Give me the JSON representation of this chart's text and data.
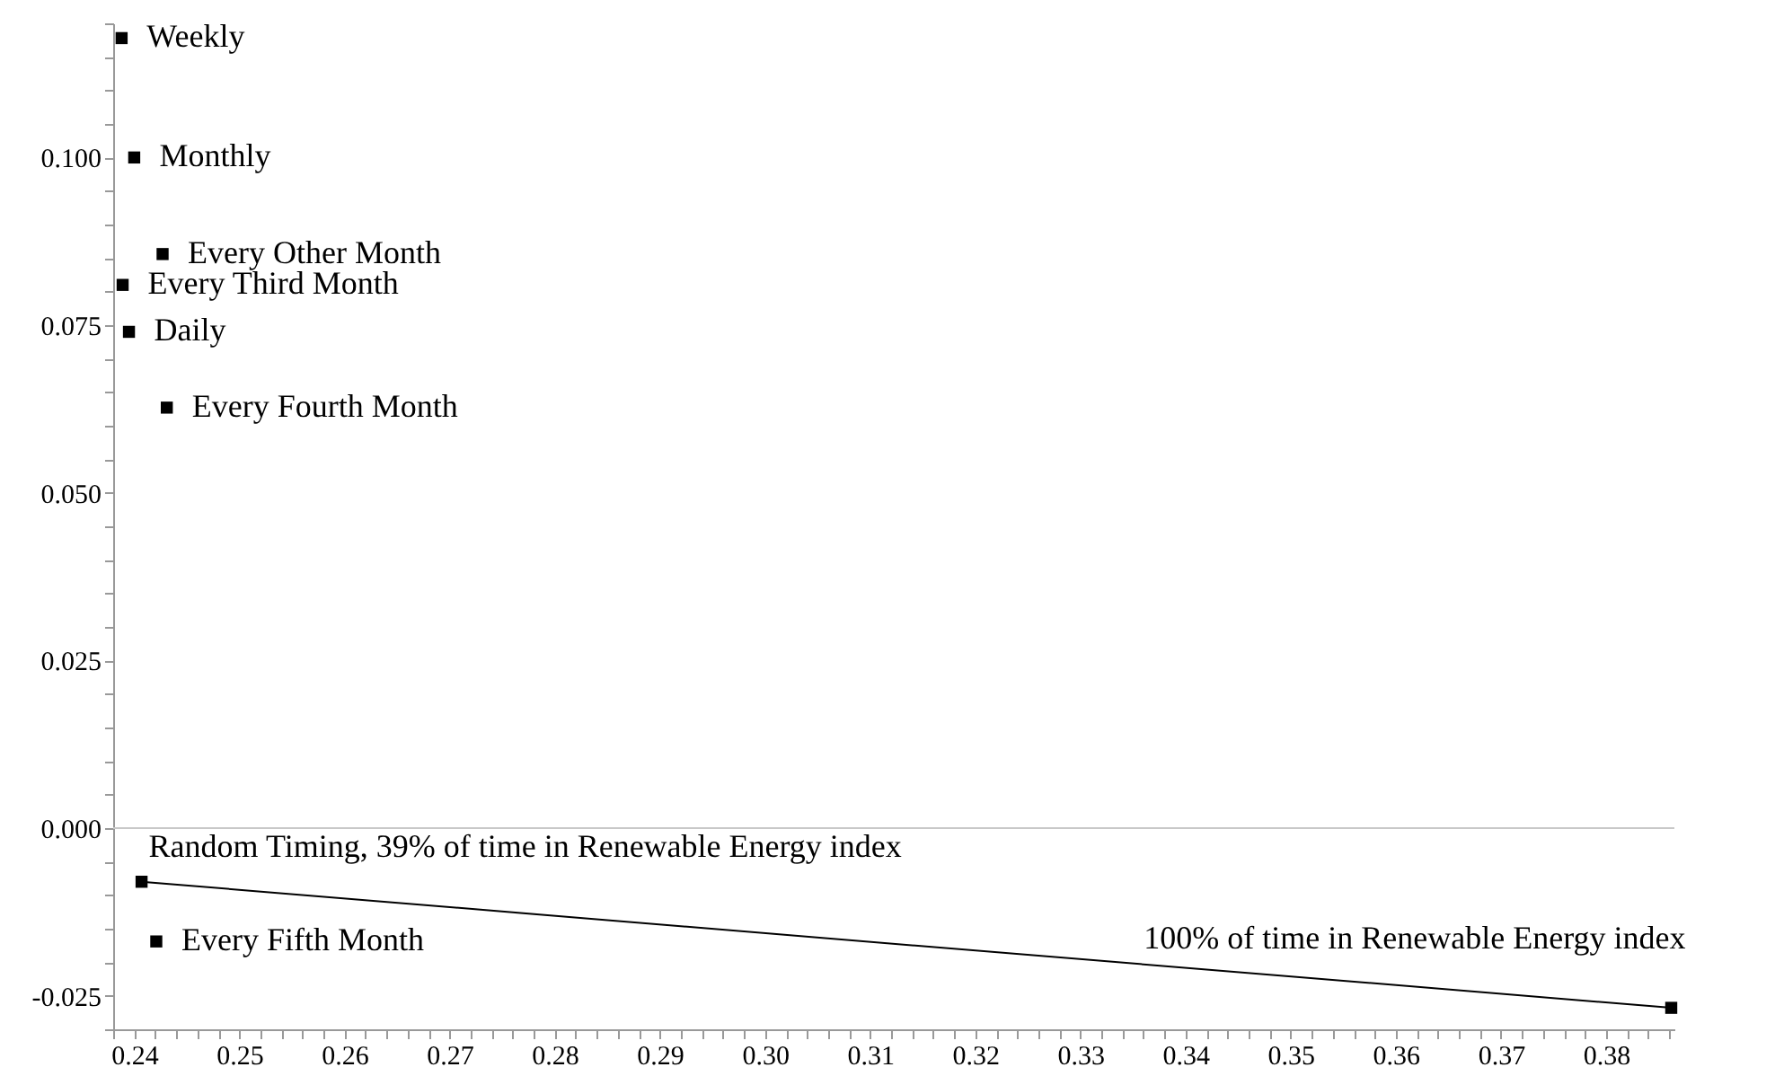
{
  "chart_data": {
    "type": "scatter",
    "marker": "square",
    "grid": false,
    "xlim": [
      0.238,
      0.3865
    ],
    "ylim": [
      -0.03,
      0.12
    ],
    "xticks": [
      {
        "value": 0.238,
        "label": null
      },
      0.24,
      {
        "value": 0.242,
        "label": null
      },
      {
        "value": 0.244,
        "label": null
      },
      {
        "value": 0.246,
        "label": null
      },
      {
        "value": 0.248,
        "label": null
      },
      0.25,
      {
        "value": 0.252,
        "label": null
      },
      {
        "value": 0.254,
        "label": null
      },
      {
        "value": 0.256,
        "label": null
      },
      {
        "value": 0.258,
        "label": null
      },
      0.26,
      {
        "value": 0.262,
        "label": null
      },
      {
        "value": 0.264,
        "label": null
      },
      {
        "value": 0.266,
        "label": null
      },
      {
        "value": 0.268,
        "label": null
      },
      0.27,
      {
        "value": 0.272,
        "label": null
      },
      {
        "value": 0.274,
        "label": null
      },
      {
        "value": 0.276,
        "label": null
      },
      {
        "value": 0.278,
        "label": null
      },
      0.28,
      {
        "value": 0.282,
        "label": null
      },
      {
        "value": 0.284,
        "label": null
      },
      {
        "value": 0.286,
        "label": null
      },
      {
        "value": 0.288,
        "label": null
      },
      0.29,
      {
        "value": 0.292,
        "label": null
      },
      {
        "value": 0.294,
        "label": null
      },
      {
        "value": 0.296,
        "label": null
      },
      {
        "value": 0.298,
        "label": null
      },
      {
        "value": 0.3,
        "label": "0.30"
      },
      {
        "value": 0.302,
        "label": null
      },
      {
        "value": 0.304,
        "label": null
      },
      {
        "value": 0.306,
        "label": null
      },
      {
        "value": 0.308,
        "label": null
      },
      0.31,
      {
        "value": 0.312,
        "label": null
      },
      {
        "value": 0.314,
        "label": null
      },
      {
        "value": 0.316,
        "label": null
      },
      {
        "value": 0.318,
        "label": null
      },
      0.32,
      {
        "value": 0.322,
        "label": null
      },
      {
        "value": 0.324,
        "label": null
      },
      {
        "value": 0.326,
        "label": null
      },
      {
        "value": 0.328,
        "label": null
      },
      0.33,
      {
        "value": 0.332,
        "label": null
      },
      {
        "value": 0.334,
        "label": null
      },
      {
        "value": 0.336,
        "label": null
      },
      {
        "value": 0.338,
        "label": null
      },
      0.34,
      {
        "value": 0.342,
        "label": null
      },
      {
        "value": 0.344,
        "label": null
      },
      {
        "value": 0.346,
        "label": null
      },
      {
        "value": 0.348,
        "label": null
      },
      0.35,
      {
        "value": 0.352,
        "label": null
      },
      {
        "value": 0.354,
        "label": null
      },
      {
        "value": 0.356,
        "label": null
      },
      {
        "value": 0.358,
        "label": null
      },
      0.36,
      {
        "value": 0.362,
        "label": null
      },
      {
        "value": 0.364,
        "label": null
      },
      {
        "value": 0.366,
        "label": null
      },
      {
        "value": 0.368,
        "label": null
      },
      0.37,
      {
        "value": 0.372,
        "label": null
      },
      {
        "value": 0.374,
        "label": null
      },
      {
        "value": 0.376,
        "label": null
      },
      {
        "value": 0.378,
        "label": null
      },
      0.38,
      {
        "value": 0.382,
        "label": null
      },
      {
        "value": 0.384,
        "label": null
      },
      {
        "value": 0.386,
        "label": null
      }
    ],
    "yticks": [
      {
        "value": -0.03,
        "label": null
      },
      {
        "value": -0.025,
        "label": "-0.025"
      },
      {
        "value": -0.02,
        "label": null
      },
      {
        "value": -0.015,
        "label": null
      },
      {
        "value": -0.01,
        "label": null
      },
      {
        "value": -0.005,
        "label": null
      },
      {
        "value": 0,
        "label": "0.000"
      },
      {
        "value": 0.005,
        "label": null
      },
      {
        "value": 0.01,
        "label": null
      },
      {
        "value": 0.015,
        "label": null
      },
      {
        "value": 0.02,
        "label": null
      },
      0.025,
      {
        "value": 0.03,
        "label": null
      },
      {
        "value": 0.035,
        "label": null
      },
      {
        "value": 0.04,
        "label": null
      },
      {
        "value": 0.045,
        "label": null
      },
      {
        "value": 0.05,
        "label": "0.050"
      },
      {
        "value": 0.055,
        "label": null
      },
      {
        "value": 0.06,
        "label": null
      },
      {
        "value": 0.065,
        "label": null
      },
      {
        "value": 0.07,
        "label": null
      },
      0.075,
      {
        "value": 0.08,
        "label": null
      },
      {
        "value": 0.085,
        "label": null
      },
      {
        "value": 0.09,
        "label": null
      },
      {
        "value": 0.095,
        "label": null
      },
      {
        "value": 0.1,
        "label": "0.100"
      },
      {
        "value": 0.105,
        "label": null
      },
      {
        "value": 0.11,
        "label": null
      },
      {
        "value": 0.115,
        "label": null
      },
      {
        "value": 0.12,
        "label": null
      }
    ],
    "ref_lines": [
      {
        "axis": "y",
        "value": 0,
        "color": "#c8c8c8"
      }
    ],
    "series": [
      {
        "name": "Weekly",
        "color": "#000000",
        "x": [
          0.2388
        ],
        "values": [
          0.1178
        ]
      },
      {
        "name": "Monthly",
        "color": "#000000",
        "x": [
          0.24
        ],
        "values": [
          0.1
        ]
      },
      {
        "name": "Every Other Month",
        "color": "#000000",
        "x": [
          0.2427
        ],
        "values": [
          0.0856
        ]
      },
      {
        "name": "Every Third Month",
        "color": "#000000",
        "x": [
          0.2389
        ],
        "values": [
          0.081
        ]
      },
      {
        "name": "Daily",
        "color": "#000000",
        "x": [
          0.2395
        ],
        "values": [
          0.074
        ]
      },
      {
        "name": "Every Fourth Month",
        "color": "#000000",
        "x": [
          0.2431
        ],
        "values": [
          0.0627
        ]
      },
      {
        "name": "Random Timing, 39% of time in Renewable Energy index",
        "color": "#000000",
        "x": [
          0.2407
        ],
        "values": [
          -0.008
        ]
      },
      {
        "name": "Every Fifth Month",
        "color": "#000000",
        "x": [
          0.2421
        ],
        "values": [
          -0.0169
        ]
      },
      {
        "name": "100% of time in Renewable Energy index",
        "color": "#000000",
        "x": [
          0.3862
        ],
        "values": [
          -0.0268
        ]
      },
      {
        "type": "line",
        "marker": "none",
        "color": "#000000",
        "x": [
          0.2407,
          0.3862
        ],
        "values": [
          -0.008,
          -0.0268
        ]
      }
    ]
  }
}
